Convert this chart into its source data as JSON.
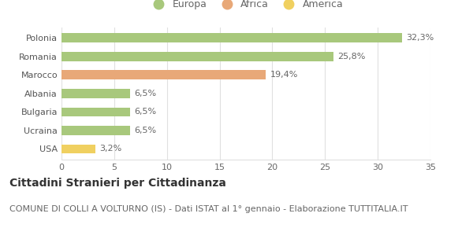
{
  "categories": [
    "Polonia",
    "Romania",
    "Marocco",
    "Albania",
    "Bulgaria",
    "Ucraina",
    "USA"
  ],
  "values": [
    32.3,
    25.8,
    19.4,
    6.5,
    6.5,
    6.5,
    3.2
  ],
  "labels": [
    "32,3%",
    "25,8%",
    "19,4%",
    "6,5%",
    "6,5%",
    "6,5%",
    "3,2%"
  ],
  "colors": [
    "#a8c87c",
    "#a8c87c",
    "#e8a878",
    "#a8c87c",
    "#a8c87c",
    "#a8c87c",
    "#f0d060"
  ],
  "legend_items": [
    {
      "label": "Europa",
      "color": "#a8c87c"
    },
    {
      "label": "Africa",
      "color": "#e8a878"
    },
    {
      "label": "America",
      "color": "#f0d060"
    }
  ],
  "xlim": [
    0,
    35
  ],
  "xticks": [
    0,
    5,
    10,
    15,
    20,
    25,
    30,
    35
  ],
  "title": "Cittadini Stranieri per Cittadinanza",
  "subtitle": "COMUNE DI COLLI A VOLTURNO (IS) - Dati ISTAT al 1° gennaio - Elaborazione TUTTITALIA.IT",
  "background_color": "#ffffff",
  "grid_color": "#e0e0e0",
  "bar_height": 0.5,
  "title_fontsize": 10,
  "subtitle_fontsize": 8,
  "label_fontsize": 8,
  "tick_fontsize": 8,
  "legend_fontsize": 9
}
